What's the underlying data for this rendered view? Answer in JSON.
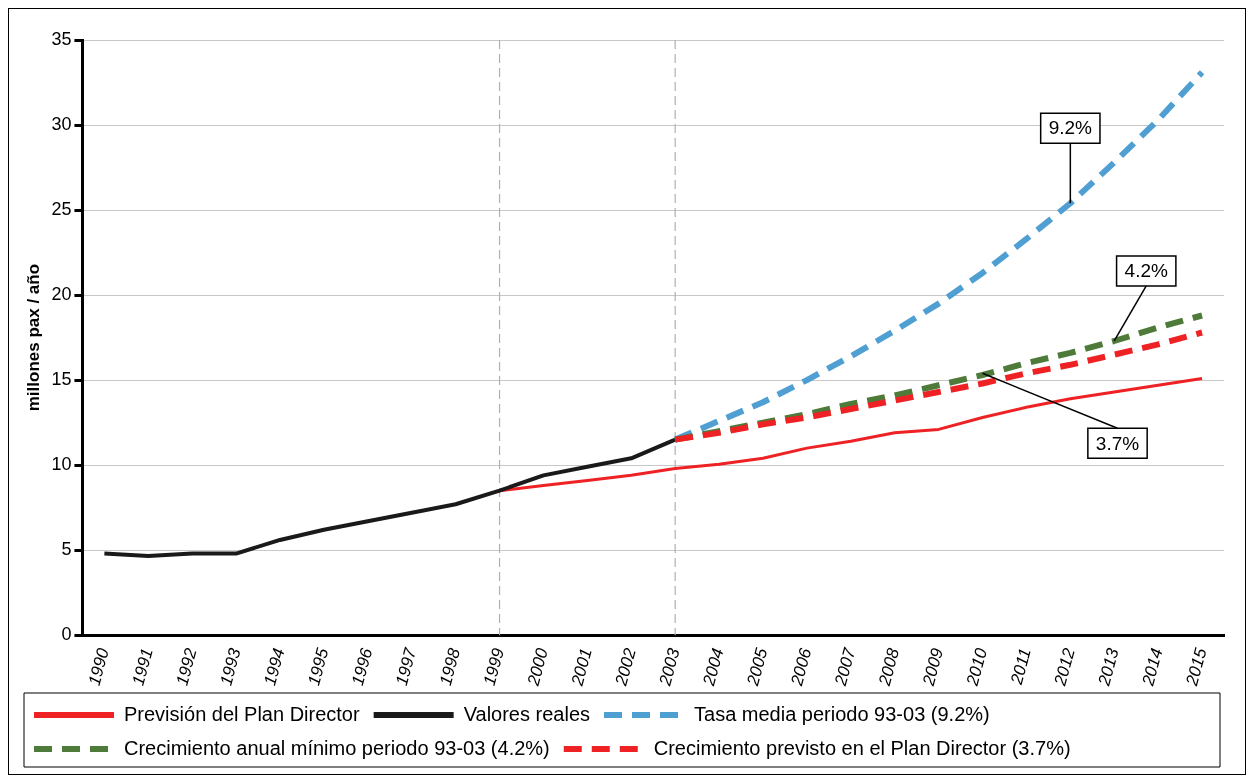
{
  "chart_data": {
    "type": "line",
    "ylabel": "millones pax / año",
    "categories": [
      "1990",
      "1991",
      "1992",
      "1993",
      "1994",
      "1995",
      "1996",
      "1997",
      "1998",
      "1999",
      "2000",
      "2001",
      "2002",
      "2003",
      "2004",
      "2005",
      "2006",
      "2007",
      "2008",
      "2009",
      "2010",
      "2011",
      "2012",
      "2013",
      "2014",
      "2015"
    ],
    "ylim": [
      0,
      35
    ],
    "yticks": [
      0,
      5,
      10,
      15,
      20,
      25,
      30,
      35
    ],
    "grid": "y",
    "legend": "bottom",
    "marker": "none",
    "series": [
      {
        "name": "Previsión del Plan Director",
        "color": "#ee2224",
        "line_style": "solid",
        "values": [
          null,
          null,
          null,
          null,
          null,
          null,
          null,
          null,
          null,
          8.5,
          8.8,
          9.1,
          9.4,
          9.8,
          10.05,
          10.4,
          11.0,
          11.4,
          11.9,
          12.1,
          12.8,
          13.4,
          13.9,
          14.3,
          14.7,
          15.1
        ]
      },
      {
        "name": "Valores reales",
        "color": "#1a1a1a",
        "line_style": "solid",
        "values": [
          4.8,
          4.65,
          4.8,
          4.8,
          5.6,
          6.2,
          6.7,
          7.2,
          7.7,
          8.5,
          9.4,
          9.9,
          10.4,
          11.5,
          null,
          null,
          null,
          null,
          null,
          null,
          null,
          null,
          null,
          null,
          null,
          null
        ]
      },
      {
        "name": "Tasa media periodo 93-03 (9.2%)",
        "color": "#4f9fd3",
        "line_style": "dashed",
        "values": [
          null,
          null,
          null,
          null,
          null,
          null,
          null,
          null,
          null,
          null,
          null,
          null,
          null,
          11.5,
          12.6,
          13.7,
          15.0,
          16.4,
          17.9,
          19.5,
          21.3,
          23.3,
          25.4,
          27.8,
          30.3,
          33.1
        ]
      },
      {
        "name": "Crecimiento anual mínimo periodo 93-03 (4.2%)",
        "color": "#4e7a3a",
        "line_style": "dashed",
        "values": [
          null,
          null,
          null,
          null,
          null,
          null,
          null,
          null,
          null,
          null,
          null,
          null,
          null,
          11.5,
          12.0,
          12.5,
          13.0,
          13.6,
          14.1,
          14.7,
          15.3,
          16.0,
          16.6,
          17.3,
          18.1,
          18.8
        ]
      },
      {
        "name": "Crecimiento previsto en el Plan Director (3.7%)",
        "color": "#ee2224",
        "line_style": "dashed",
        "values": [
          null,
          null,
          null,
          null,
          null,
          null,
          null,
          null,
          null,
          null,
          null,
          null,
          null,
          11.5,
          11.9,
          12.4,
          12.8,
          13.3,
          13.8,
          14.3,
          14.8,
          15.4,
          15.9,
          16.5,
          17.1,
          17.8
        ]
      }
    ],
    "ref_lines": [
      {
        "axis": "x",
        "value": "1999",
        "color": "#b0b0b0",
        "line_style": "dashed"
      },
      {
        "axis": "x",
        "value": "2003",
        "color": "#b0b0b0",
        "line_style": "dashed"
      }
    ],
    "annotations": [
      {
        "text": "9.2%",
        "x": "2012",
        "y": 25.4
      },
      {
        "text": "4.2%",
        "x": "2013",
        "y": 17.3
      },
      {
        "text": "3.7%",
        "x": "2010",
        "y": 15.4
      }
    ]
  }
}
